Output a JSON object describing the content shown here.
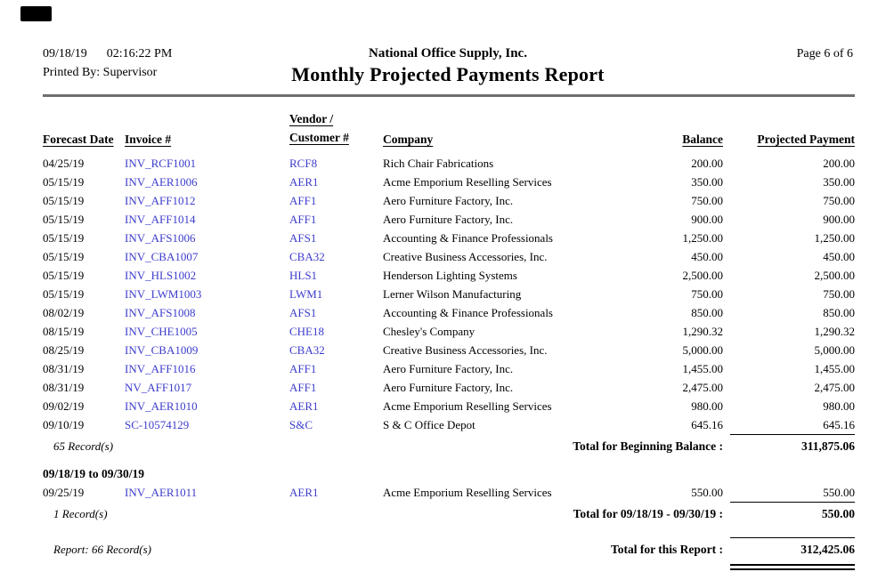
{
  "report": {
    "print_date": "09/18/19",
    "print_time": "02:16:22 PM",
    "printed_by": "Printed By: Supervisor",
    "company_name": "National Office Supply, Inc.",
    "title": "Monthly Projected Payments Report",
    "page_info": "Page 6 of 6"
  },
  "table": {
    "headers": {
      "forecast_date": "Forecast Date",
      "invoice": "Invoice #",
      "vendor_customer_line1": "Vendor /",
      "vendor_customer_line2": "Customer #",
      "company": "Company",
      "balance": "Balance",
      "projected_payment": "Projected Payment"
    },
    "rows": [
      {
        "date": "04/25/19",
        "invoice": "INV_RCF1001",
        "vendor": "RCF8",
        "company": "Rich Chair Fabrications",
        "balance": "200.00",
        "payment": "200.00"
      },
      {
        "date": "05/15/19",
        "invoice": "INV_AER1006",
        "vendor": "AER1",
        "company": "Acme Emporium Reselling Services",
        "balance": "350.00",
        "payment": "350.00"
      },
      {
        "date": "05/15/19",
        "invoice": "INV_AFF1012",
        "vendor": "AFF1",
        "company": "Aero Furniture Factory, Inc.",
        "balance": "750.00",
        "payment": "750.00"
      },
      {
        "date": "05/15/19",
        "invoice": "INV_AFF1014",
        "vendor": "AFF1",
        "company": "Aero Furniture Factory, Inc.",
        "balance": "900.00",
        "payment": "900.00"
      },
      {
        "date": "05/15/19",
        "invoice": "INV_AFS1006",
        "vendor": "AFS1",
        "company": "Accounting & Finance Professionals",
        "balance": "1,250.00",
        "payment": "1,250.00"
      },
      {
        "date": "05/15/19",
        "invoice": "INV_CBA1007",
        "vendor": "CBA32",
        "company": "Creative Business Accessories, Inc.",
        "balance": "450.00",
        "payment": "450.00"
      },
      {
        "date": "05/15/19",
        "invoice": "INV_HLS1002",
        "vendor": "HLS1",
        "company": "Henderson Lighting Systems",
        "balance": "2,500.00",
        "payment": "2,500.00"
      },
      {
        "date": "05/15/19",
        "invoice": "INV_LWM1003",
        "vendor": "LWM1",
        "company": "Lerner Wilson Manufacturing",
        "balance": "750.00",
        "payment": "750.00"
      },
      {
        "date": "08/02/19",
        "invoice": "INV_AFS1008",
        "vendor": "AFS1",
        "company": "Accounting & Finance Professionals",
        "balance": "850.00",
        "payment": "850.00"
      },
      {
        "date": "08/15/19",
        "invoice": "INV_CHE1005",
        "vendor": "CHE18",
        "company": "Chesley's Company",
        "balance": "1,290.32",
        "payment": "1,290.32"
      },
      {
        "date": "08/25/19",
        "invoice": "INV_CBA1009",
        "vendor": "CBA32",
        "company": "Creative Business Accessories, Inc.",
        "balance": "5,000.00",
        "payment": "5,000.00"
      },
      {
        "date": "08/31/19",
        "invoice": "INV_AFF1016",
        "vendor": "AFF1",
        "company": "Aero Furniture Factory, Inc.",
        "balance": "1,455.00",
        "payment": "1,455.00"
      },
      {
        "date": "08/31/19",
        "invoice": "NV_AFF1017",
        "vendor": "AFF1",
        "company": "Aero Furniture Factory, Inc.",
        "balance": "2,475.00",
        "payment": "2,475.00"
      },
      {
        "date": "09/02/19",
        "invoice": "INV_AER1010",
        "vendor": "AER1",
        "company": "Acme Emporium Reselling Services",
        "balance": "980.00",
        "payment": "980.00"
      },
      {
        "date": "09/10/19",
        "invoice": "SC-10574129",
        "vendor": "S&C",
        "company": "S & C Office Depot",
        "balance": "645.16",
        "payment": "645.16"
      }
    ],
    "group1_summary": {
      "record_count": "65 Record(s)",
      "total_label": "Total for Beginning Balance :",
      "total_value": "311,875.06"
    },
    "group2": {
      "heading": "09/18/19 to 09/30/19",
      "rows": [
        {
          "date": "09/25/19",
          "invoice": "INV_AER1011",
          "vendor": "AER1",
          "company": "Acme Emporium Reselling Services",
          "balance": "550.00",
          "payment": "550.00"
        }
      ],
      "record_count": "1 Record(s)",
      "total_label": "Total for 09/18/19 - 09/30/19 :",
      "total_value": "550.00"
    },
    "report_summary": {
      "record_count": "Report: 66 Record(s)",
      "total_label": "Total for this Report :",
      "total_value": "312,425.06"
    }
  },
  "colors": {
    "link_blue": "#3c3ccd",
    "rule_gray": "#6e6e6e",
    "text": "#000000"
  }
}
